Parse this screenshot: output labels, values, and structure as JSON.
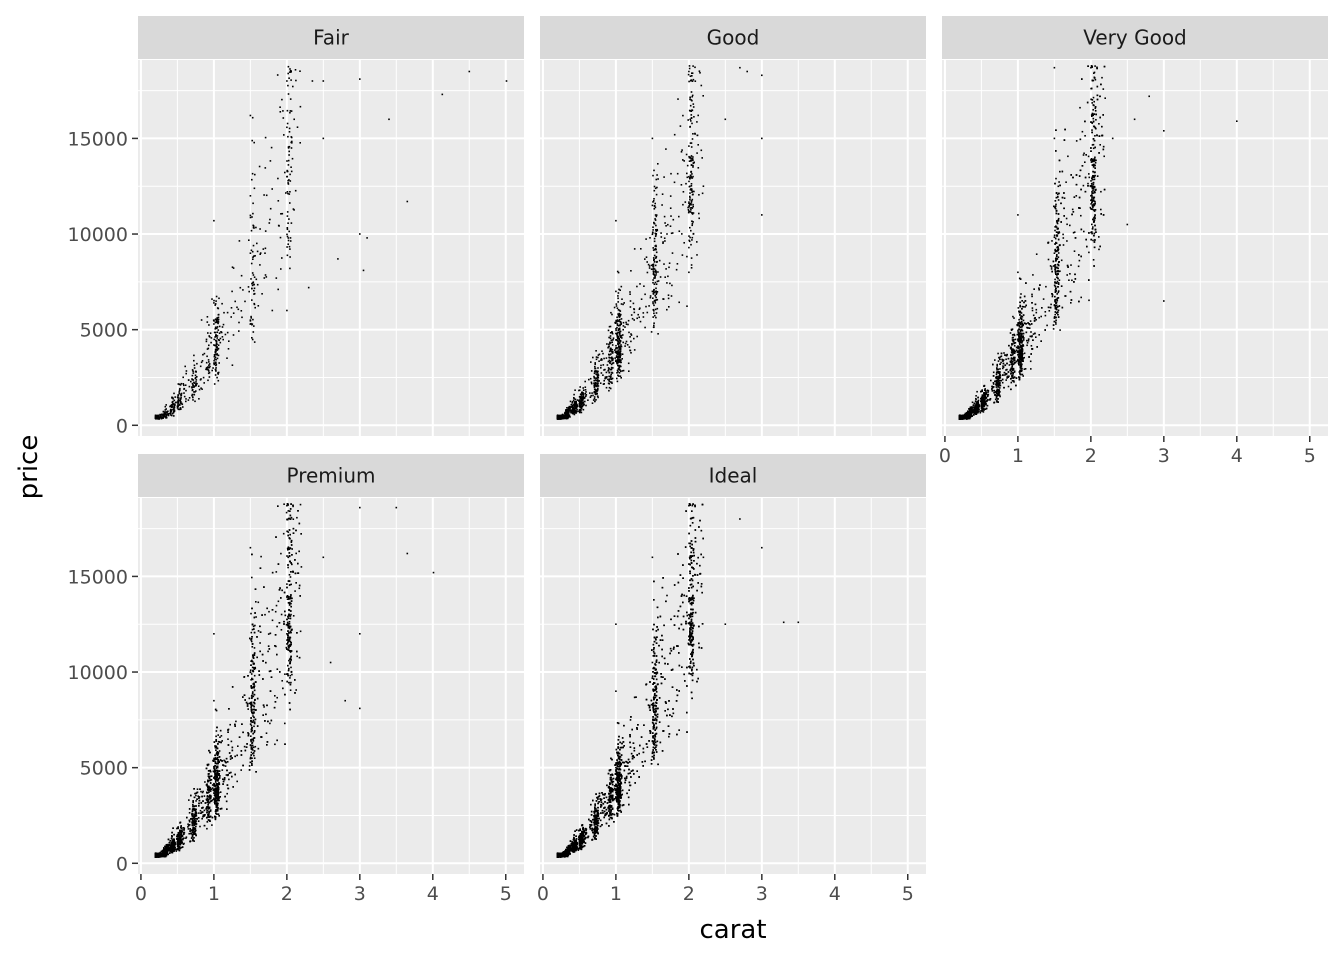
{
  "chart_data": {
    "type": "scatter",
    "xlabel": "carat",
    "ylabel": "price",
    "xlim": [
      -0.04,
      5.25
    ],
    "ylim": [
      -560,
      19100
    ],
    "x_ticks": [
      0,
      1,
      2,
      3,
      4,
      5
    ],
    "y_ticks": [
      0,
      5000,
      10000,
      15000
    ],
    "x_tick_labels": [
      "0",
      "1",
      "2",
      "3",
      "4",
      "5"
    ],
    "y_tick_labels": [
      "0",
      "5000",
      "10000",
      "15000"
    ],
    "grid": true,
    "legend": "none",
    "facets": [
      {
        "name": "Fair",
        "shape": {
          "n": 650,
          "spread": 0.17
        },
        "points": [
          [
            0.25,
            340
          ],
          [
            0.3,
            420
          ],
          [
            0.35,
            520
          ],
          [
            0.42,
            800
          ],
          [
            0.5,
            1000
          ],
          [
            0.6,
            1500
          ],
          [
            0.7,
            2000
          ],
          [
            0.75,
            2800
          ],
          [
            0.9,
            3000
          ],
          [
            1.0,
            4200
          ],
          [
            1.0,
            6400
          ],
          [
            1.0,
            10700
          ],
          [
            1.05,
            3500
          ],
          [
            1.2,
            4000
          ],
          [
            1.25,
            7000
          ],
          [
            1.5,
            5500
          ],
          [
            1.5,
            9000
          ],
          [
            1.5,
            12000
          ],
          [
            1.5,
            16200
          ],
          [
            1.7,
            9000
          ],
          [
            1.8,
            6000
          ],
          [
            2.0,
            6000
          ],
          [
            2.0,
            13000
          ],
          [
            2.0,
            18000
          ],
          [
            2.1,
            16000
          ],
          [
            2.3,
            7200
          ],
          [
            2.35,
            18000
          ],
          [
            2.5,
            15000
          ],
          [
            2.5,
            18000
          ],
          [
            2.7,
            8700
          ],
          [
            3.0,
            10000
          ],
          [
            3.0,
            18100
          ],
          [
            3.05,
            8100
          ],
          [
            3.1,
            9800
          ],
          [
            3.4,
            16000
          ],
          [
            3.65,
            11700
          ],
          [
            4.13,
            17300
          ],
          [
            4.5,
            18500
          ],
          [
            5.01,
            18000
          ]
        ]
      },
      {
        "name": "Good",
        "shape": {
          "n": 1300,
          "spread": 0.15
        },
        "points": [
          [
            0.23,
            330
          ],
          [
            0.3,
            400
          ],
          [
            0.5,
            1000
          ],
          [
            0.7,
            2200
          ],
          [
            0.9,
            3000
          ],
          [
            1.0,
            4000
          ],
          [
            1.0,
            7000
          ],
          [
            1.0,
            10700
          ],
          [
            1.1,
            5000
          ],
          [
            1.2,
            6500
          ],
          [
            1.5,
            7000
          ],
          [
            1.5,
            11500
          ],
          [
            1.5,
            15000
          ],
          [
            1.7,
            10000
          ],
          [
            2.0,
            8000
          ],
          [
            2.0,
            13000
          ],
          [
            2.0,
            18500
          ],
          [
            2.2,
            12500
          ],
          [
            2.5,
            16000
          ],
          [
            2.7,
            18700
          ],
          [
            2.8,
            18500
          ],
          [
            3.0,
            11000
          ],
          [
            3.0,
            15000
          ],
          [
            3.0,
            18300
          ]
        ]
      },
      {
        "name": "Very Good",
        "shape": {
          "n": 2400,
          "spread": 0.14
        },
        "points": [
          [
            0.23,
            340
          ],
          [
            0.3,
            450
          ],
          [
            0.5,
            1200
          ],
          [
            0.7,
            2500
          ],
          [
            1.0,
            4500
          ],
          [
            1.0,
            8000
          ],
          [
            1.0,
            11000
          ],
          [
            1.2,
            6000
          ],
          [
            1.5,
            9000
          ],
          [
            1.5,
            15000
          ],
          [
            1.5,
            18700
          ],
          [
            1.8,
            12000
          ],
          [
            2.0,
            12000
          ],
          [
            2.0,
            18700
          ],
          [
            2.3,
            15000
          ],
          [
            2.5,
            10500
          ],
          [
            2.6,
            16000
          ],
          [
            2.8,
            17200
          ],
          [
            3.0,
            6500
          ],
          [
            3.0,
            15400
          ],
          [
            4.0,
            15900
          ]
        ]
      },
      {
        "name": "Premium",
        "shape": {
          "n": 2600,
          "spread": 0.15
        },
        "points": [
          [
            0.23,
            330
          ],
          [
            0.3,
            420
          ],
          [
            0.5,
            1300
          ],
          [
            0.7,
            2600
          ],
          [
            1.0,
            4800
          ],
          [
            1.0,
            8500
          ],
          [
            1.0,
            12000
          ],
          [
            1.2,
            7000
          ],
          [
            1.5,
            10000
          ],
          [
            1.5,
            16500
          ],
          [
            1.7,
            13000
          ],
          [
            2.0,
            12000
          ],
          [
            2.0,
            18700
          ],
          [
            2.2,
            15500
          ],
          [
            2.5,
            16000
          ],
          [
            2.6,
            10500
          ],
          [
            2.8,
            8500
          ],
          [
            3.0,
            8100
          ],
          [
            3.0,
            12000
          ],
          [
            3.0,
            18600
          ],
          [
            3.5,
            18600
          ],
          [
            3.65,
            16200
          ],
          [
            4.01,
            15200
          ]
        ]
      },
      {
        "name": "Ideal",
        "shape": {
          "n": 3200,
          "spread": 0.13
        },
        "points": [
          [
            0.2,
            330
          ],
          [
            0.3,
            450
          ],
          [
            0.5,
            1400
          ],
          [
            0.7,
            2700
          ],
          [
            1.0,
            5000
          ],
          [
            1.0,
            9000
          ],
          [
            1.0,
            12500
          ],
          [
            1.2,
            7500
          ],
          [
            1.5,
            10500
          ],
          [
            1.5,
            16000
          ],
          [
            1.7,
            14000
          ],
          [
            2.0,
            13000
          ],
          [
            2.0,
            18700
          ],
          [
            2.2,
            16000
          ],
          [
            2.5,
            12500
          ],
          [
            2.7,
            18000
          ],
          [
            3.0,
            16500
          ],
          [
            3.3,
            12600
          ],
          [
            3.5,
            12600
          ]
        ]
      }
    ]
  }
}
